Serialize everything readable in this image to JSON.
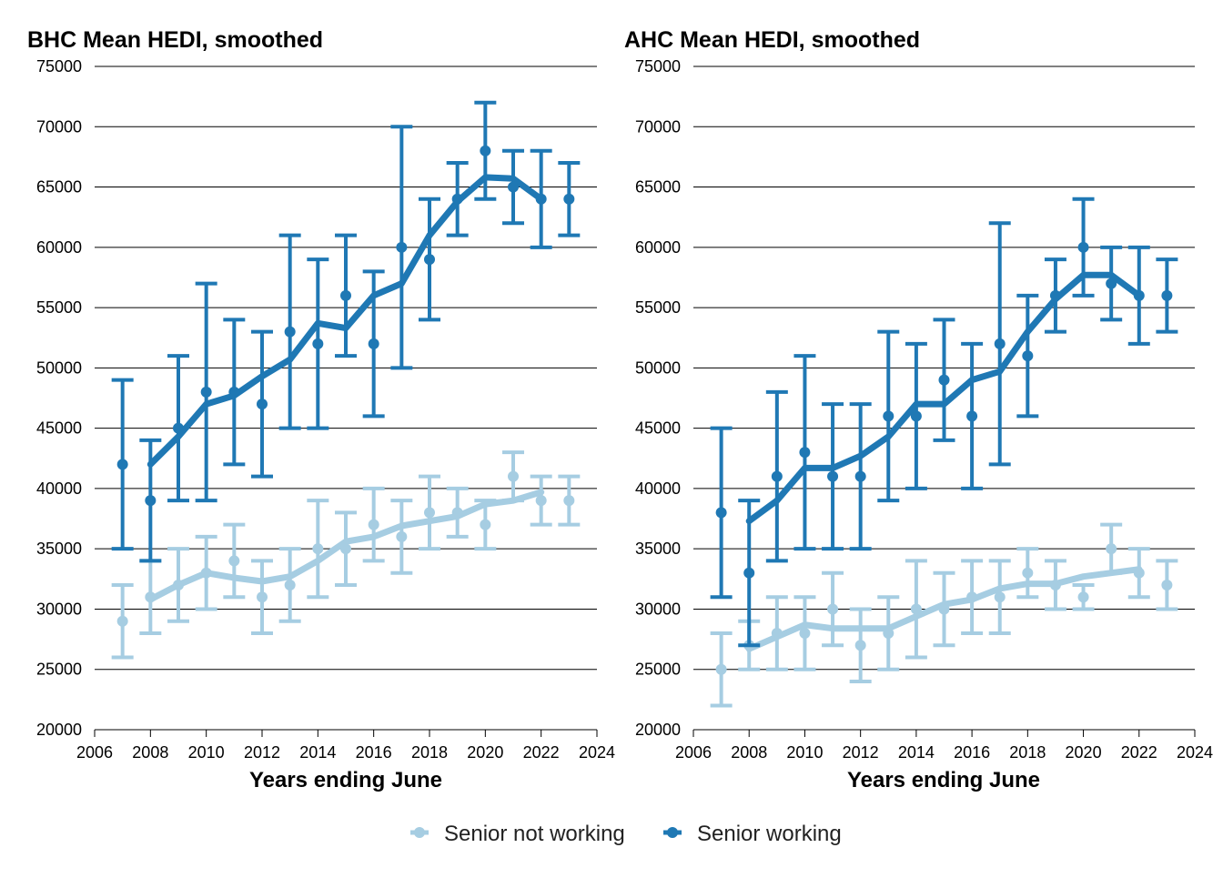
{
  "colors": {
    "senior_not_working": "#a6cde2",
    "senior_working": "#1f78b4"
  },
  "legend": {
    "items": [
      {
        "label": "Senior not working",
        "color": "#a6cde2"
      },
      {
        "label": "Senior working",
        "color": "#1f78b4"
      }
    ]
  },
  "chart_data": [
    {
      "type": "line",
      "title": "BHC Mean HEDI, smoothed",
      "xlabel": "Years ending June",
      "ylabel": "",
      "xlim": [
        2006,
        2024
      ],
      "ylim": [
        20000,
        75000
      ],
      "x_ticks": [
        2006,
        2008,
        2010,
        2012,
        2014,
        2016,
        2018,
        2020,
        2022,
        2024
      ],
      "y_ticks": [
        20000,
        25000,
        30000,
        35000,
        40000,
        45000,
        50000,
        55000,
        60000,
        65000,
        70000,
        75000
      ],
      "grid": "horizontal",
      "series": [
        {
          "name": "Senior not working",
          "color": "#a6cde2",
          "points": [
            {
              "x": 2007,
              "y": 29000,
              "lo": 26000,
              "hi": 32000
            },
            {
              "x": 2008,
              "y": 31000,
              "lo": 28000,
              "hi": 34000
            },
            {
              "x": 2009,
              "y": 32000,
              "lo": 29000,
              "hi": 35000
            },
            {
              "x": 2010,
              "y": 33000,
              "lo": 30000,
              "hi": 36000
            },
            {
              "x": 2011,
              "y": 34000,
              "lo": 31000,
              "hi": 37000
            },
            {
              "x": 2012,
              "y": 31000,
              "lo": 28000,
              "hi": 34000
            },
            {
              "x": 2013,
              "y": 32000,
              "lo": 29000,
              "hi": 35000
            },
            {
              "x": 2014,
              "y": 35000,
              "lo": 31000,
              "hi": 39000
            },
            {
              "x": 2015,
              "y": 35000,
              "lo": 32000,
              "hi": 38000
            },
            {
              "x": 2016,
              "y": 37000,
              "lo": 34000,
              "hi": 40000
            },
            {
              "x": 2017,
              "y": 36000,
              "lo": 33000,
              "hi": 39000
            },
            {
              "x": 2018,
              "y": 38000,
              "lo": 35000,
              "hi": 41000
            },
            {
              "x": 2019,
              "y": 38000,
              "lo": 36000,
              "hi": 40000
            },
            {
              "x": 2020,
              "y": 37000,
              "lo": 35000,
              "hi": 39000
            },
            {
              "x": 2021,
              "y": 41000,
              "lo": 39000,
              "hi": 43000
            },
            {
              "x": 2022,
              "y": 39000,
              "lo": 37000,
              "hi": 41000
            },
            {
              "x": 2023,
              "y": 39000,
              "lo": 37000,
              "hi": 41000
            }
          ],
          "smoothed": [
            {
              "x": 2008,
              "y": 30800
            },
            {
              "x": 2009,
              "y": 32000
            },
            {
              "x": 2010,
              "y": 33000
            },
            {
              "x": 2011,
              "y": 32600
            },
            {
              "x": 2012,
              "y": 32300
            },
            {
              "x": 2013,
              "y": 32700
            },
            {
              "x": 2014,
              "y": 34000
            },
            {
              "x": 2015,
              "y": 35600
            },
            {
              "x": 2016,
              "y": 36000
            },
            {
              "x": 2017,
              "y": 36900
            },
            {
              "x": 2018,
              "y": 37300
            },
            {
              "x": 2019,
              "y": 37700
            },
            {
              "x": 2020,
              "y": 38700
            },
            {
              "x": 2021,
              "y": 39000
            },
            {
              "x": 2022,
              "y": 39700
            }
          ]
        },
        {
          "name": "Senior working",
          "color": "#1f78b4",
          "points": [
            {
              "x": 2007,
              "y": 42000,
              "lo": 35000,
              "hi": 49000
            },
            {
              "x": 2008,
              "y": 39000,
              "lo": 34000,
              "hi": 44000
            },
            {
              "x": 2009,
              "y": 45000,
              "lo": 39000,
              "hi": 51000
            },
            {
              "x": 2010,
              "y": 48000,
              "lo": 39000,
              "hi": 57000
            },
            {
              "x": 2011,
              "y": 48000,
              "lo": 42000,
              "hi": 54000
            },
            {
              "x": 2012,
              "y": 47000,
              "lo": 41000,
              "hi": 53000
            },
            {
              "x": 2013,
              "y": 53000,
              "lo": 45000,
              "hi": 61000
            },
            {
              "x": 2014,
              "y": 52000,
              "lo": 45000,
              "hi": 59000
            },
            {
              "x": 2015,
              "y": 56000,
              "lo": 51000,
              "hi": 61000
            },
            {
              "x": 2016,
              "y": 52000,
              "lo": 46000,
              "hi": 58000
            },
            {
              "x": 2017,
              "y": 60000,
              "lo": 50000,
              "hi": 70000
            },
            {
              "x": 2018,
              "y": 59000,
              "lo": 54000,
              "hi": 64000
            },
            {
              "x": 2019,
              "y": 64000,
              "lo": 61000,
              "hi": 67000
            },
            {
              "x": 2020,
              "y": 68000,
              "lo": 64000,
              "hi": 72000
            },
            {
              "x": 2021,
              "y": 65000,
              "lo": 62000,
              "hi": 68000
            },
            {
              "x": 2022,
              "y": 64000,
              "lo": 60000,
              "hi": 68000
            },
            {
              "x": 2023,
              "y": 64000,
              "lo": 61000,
              "hi": 67000
            }
          ],
          "smoothed": [
            {
              "x": 2008,
              "y": 42000
            },
            {
              "x": 2009,
              "y": 44300
            },
            {
              "x": 2010,
              "y": 47000
            },
            {
              "x": 2011,
              "y": 47700
            },
            {
              "x": 2012,
              "y": 49300
            },
            {
              "x": 2013,
              "y": 50700
            },
            {
              "x": 2014,
              "y": 53700
            },
            {
              "x": 2015,
              "y": 53300
            },
            {
              "x": 2016,
              "y": 56000
            },
            {
              "x": 2017,
              "y": 57000
            },
            {
              "x": 2018,
              "y": 61000
            },
            {
              "x": 2019,
              "y": 63800
            },
            {
              "x": 2020,
              "y": 65800
            },
            {
              "x": 2021,
              "y": 65700
            },
            {
              "x": 2022,
              "y": 64000
            }
          ]
        }
      ]
    },
    {
      "type": "line",
      "title": "AHC Mean HEDI, smoothed",
      "xlabel": "Years ending June",
      "ylabel": "",
      "xlim": [
        2006,
        2024
      ],
      "ylim": [
        20000,
        75000
      ],
      "x_ticks": [
        2006,
        2008,
        2010,
        2012,
        2014,
        2016,
        2018,
        2020,
        2022,
        2024
      ],
      "y_ticks": [
        20000,
        25000,
        30000,
        35000,
        40000,
        45000,
        50000,
        55000,
        60000,
        65000,
        70000,
        75000
      ],
      "grid": "horizontal",
      "series": [
        {
          "name": "Senior not working",
          "color": "#a6cde2",
          "points": [
            {
              "x": 2007,
              "y": 25000,
              "lo": 22000,
              "hi": 28000
            },
            {
              "x": 2008,
              "y": 27000,
              "lo": 25000,
              "hi": 29000
            },
            {
              "x": 2009,
              "y": 28000,
              "lo": 25000,
              "hi": 31000
            },
            {
              "x": 2010,
              "y": 28000,
              "lo": 25000,
              "hi": 31000
            },
            {
              "x": 2011,
              "y": 30000,
              "lo": 27000,
              "hi": 33000
            },
            {
              "x": 2012,
              "y": 27000,
              "lo": 24000,
              "hi": 30000
            },
            {
              "x": 2013,
              "y": 28000,
              "lo": 25000,
              "hi": 31000
            },
            {
              "x": 2014,
              "y": 30000,
              "lo": 26000,
              "hi": 34000
            },
            {
              "x": 2015,
              "y": 30000,
              "lo": 27000,
              "hi": 33000
            },
            {
              "x": 2016,
              "y": 31000,
              "lo": 28000,
              "hi": 34000
            },
            {
              "x": 2017,
              "y": 31000,
              "lo": 28000,
              "hi": 34000
            },
            {
              "x": 2018,
              "y": 33000,
              "lo": 31000,
              "hi": 35000
            },
            {
              "x": 2019,
              "y": 32000,
              "lo": 30000,
              "hi": 34000
            },
            {
              "x": 2020,
              "y": 31000,
              "lo": 30000,
              "hi": 32000
            },
            {
              "x": 2021,
              "y": 35000,
              "lo": 33000,
              "hi": 37000
            },
            {
              "x": 2022,
              "y": 33000,
              "lo": 31000,
              "hi": 35000
            },
            {
              "x": 2023,
              "y": 32000,
              "lo": 30000,
              "hi": 34000
            }
          ],
          "smoothed": [
            {
              "x": 2008,
              "y": 26700
            },
            {
              "x": 2009,
              "y": 27700
            },
            {
              "x": 2010,
              "y": 28700
            },
            {
              "x": 2011,
              "y": 28400
            },
            {
              "x": 2012,
              "y": 28400
            },
            {
              "x": 2013,
              "y": 28400
            },
            {
              "x": 2014,
              "y": 29400
            },
            {
              "x": 2015,
              "y": 30400
            },
            {
              "x": 2016,
              "y": 30800
            },
            {
              "x": 2017,
              "y": 31700
            },
            {
              "x": 2018,
              "y": 32100
            },
            {
              "x": 2019,
              "y": 32100
            },
            {
              "x": 2020,
              "y": 32700
            },
            {
              "x": 2021,
              "y": 33000
            },
            {
              "x": 2022,
              "y": 33300
            }
          ]
        },
        {
          "name": "Senior working",
          "color": "#1f78b4",
          "points": [
            {
              "x": 2007,
              "y": 38000,
              "lo": 31000,
              "hi": 45000
            },
            {
              "x": 2008,
              "y": 33000,
              "lo": 27000,
              "hi": 39000
            },
            {
              "x": 2009,
              "y": 41000,
              "lo": 34000,
              "hi": 48000
            },
            {
              "x": 2010,
              "y": 43000,
              "lo": 35000,
              "hi": 51000
            },
            {
              "x": 2011,
              "y": 41000,
              "lo": 35000,
              "hi": 47000
            },
            {
              "x": 2012,
              "y": 41000,
              "lo": 35000,
              "hi": 47000
            },
            {
              "x": 2013,
              "y": 46000,
              "lo": 39000,
              "hi": 53000
            },
            {
              "x": 2014,
              "y": 46000,
              "lo": 40000,
              "hi": 52000
            },
            {
              "x": 2015,
              "y": 49000,
              "lo": 44000,
              "hi": 54000
            },
            {
              "x": 2016,
              "y": 46000,
              "lo": 40000,
              "hi": 52000
            },
            {
              "x": 2017,
              "y": 52000,
              "lo": 42000,
              "hi": 62000
            },
            {
              "x": 2018,
              "y": 51000,
              "lo": 46000,
              "hi": 56000
            },
            {
              "x": 2019,
              "y": 56000,
              "lo": 53000,
              "hi": 59000
            },
            {
              "x": 2020,
              "y": 60000,
              "lo": 56000,
              "hi": 64000
            },
            {
              "x": 2021,
              "y": 57000,
              "lo": 54000,
              "hi": 60000
            },
            {
              "x": 2022,
              "y": 56000,
              "lo": 52000,
              "hi": 60000
            },
            {
              "x": 2023,
              "y": 56000,
              "lo": 53000,
              "hi": 59000
            }
          ],
          "smoothed": [
            {
              "x": 2008,
              "y": 37300
            },
            {
              "x": 2009,
              "y": 39000
            },
            {
              "x": 2010,
              "y": 41700
            },
            {
              "x": 2011,
              "y": 41700
            },
            {
              "x": 2012,
              "y": 42700
            },
            {
              "x": 2013,
              "y": 44300
            },
            {
              "x": 2014,
              "y": 47000
            },
            {
              "x": 2015,
              "y": 47000
            },
            {
              "x": 2016,
              "y": 49000
            },
            {
              "x": 2017,
              "y": 49700
            },
            {
              "x": 2018,
              "y": 53000
            },
            {
              "x": 2019,
              "y": 55700
            },
            {
              "x": 2020,
              "y": 57700
            },
            {
              "x": 2021,
              "y": 57700
            },
            {
              "x": 2022,
              "y": 56000
            }
          ]
        }
      ]
    }
  ]
}
